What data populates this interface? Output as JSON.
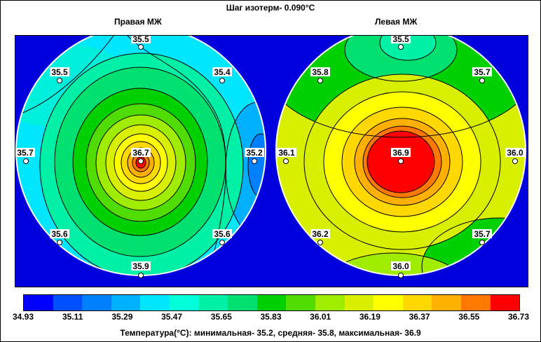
{
  "title": "Шаг изотерм- 0.090°C",
  "panels": [
    {
      "label": "Правая МЖ",
      "points": [
        {
          "label": "35.5",
          "pos": "top"
        },
        {
          "label": "35.5",
          "pos": "upper-left"
        },
        {
          "label": "35.4",
          "pos": "upper-right"
        },
        {
          "label": "35.7",
          "pos": "left"
        },
        {
          "label": "36.7",
          "pos": "center"
        },
        {
          "label": "35.2",
          "pos": "right"
        },
        {
          "label": "35.6",
          "pos": "lower-left"
        },
        {
          "label": "35.6",
          "pos": "lower-right"
        },
        {
          "label": "35.9",
          "pos": "bottom"
        }
      ]
    },
    {
      "label": "Левая МЖ",
      "points": [
        {
          "label": "35.5",
          "pos": "top"
        },
        {
          "label": "35.8",
          "pos": "upper-left"
        },
        {
          "label": "35.7",
          "pos": "upper-right"
        },
        {
          "label": "36.1",
          "pos": "left"
        },
        {
          "label": "36.9",
          "pos": "center"
        },
        {
          "label": "36.0",
          "pos": "right"
        },
        {
          "label": "36.2",
          "pos": "lower-left"
        },
        {
          "label": "35.7",
          "pos": "lower-right"
        },
        {
          "label": "36.0",
          "pos": "bottom"
        }
      ]
    }
  ],
  "chart_data": {
    "type": "heatmap",
    "title": "Шаг изотерм- 0.090°C",
    "isotherm_step": 0.09,
    "colorbar": {
      "ticks": [
        "34.93",
        "35.11",
        "35.29",
        "35.47",
        "35.65",
        "35.83",
        "36.01",
        "36.19",
        "36.37",
        "36.55",
        "36.73"
      ],
      "colors": [
        "#0000ff",
        "#0050ff",
        "#0080ff",
        "#00b0ff",
        "#00e6ff",
        "#00ffd8",
        "#00f0a8",
        "#00e070",
        "#00d000",
        "#50dc00",
        "#a0ec00",
        "#d8f000",
        "#ffff00",
        "#ffd800",
        "#ffb000",
        "#ff7800",
        "#ff0000"
      ]
    },
    "series": [
      {
        "name": "Правая МЖ",
        "values": [
          35.5,
          35.5,
          35.4,
          35.7,
          36.7,
          35.2,
          35.6,
          35.6,
          35.9
        ]
      },
      {
        "name": "Левая МЖ",
        "values": [
          35.5,
          35.8,
          35.7,
          36.1,
          36.9,
          36.0,
          36.2,
          35.7,
          36.0
        ]
      }
    ],
    "stats": {
      "min": 35.2,
      "mean": 35.8,
      "max": 36.9
    }
  },
  "footer": "Температура(°С): минимальная-   35.2,  средняя-   35.8,  максимальная-   36.9"
}
